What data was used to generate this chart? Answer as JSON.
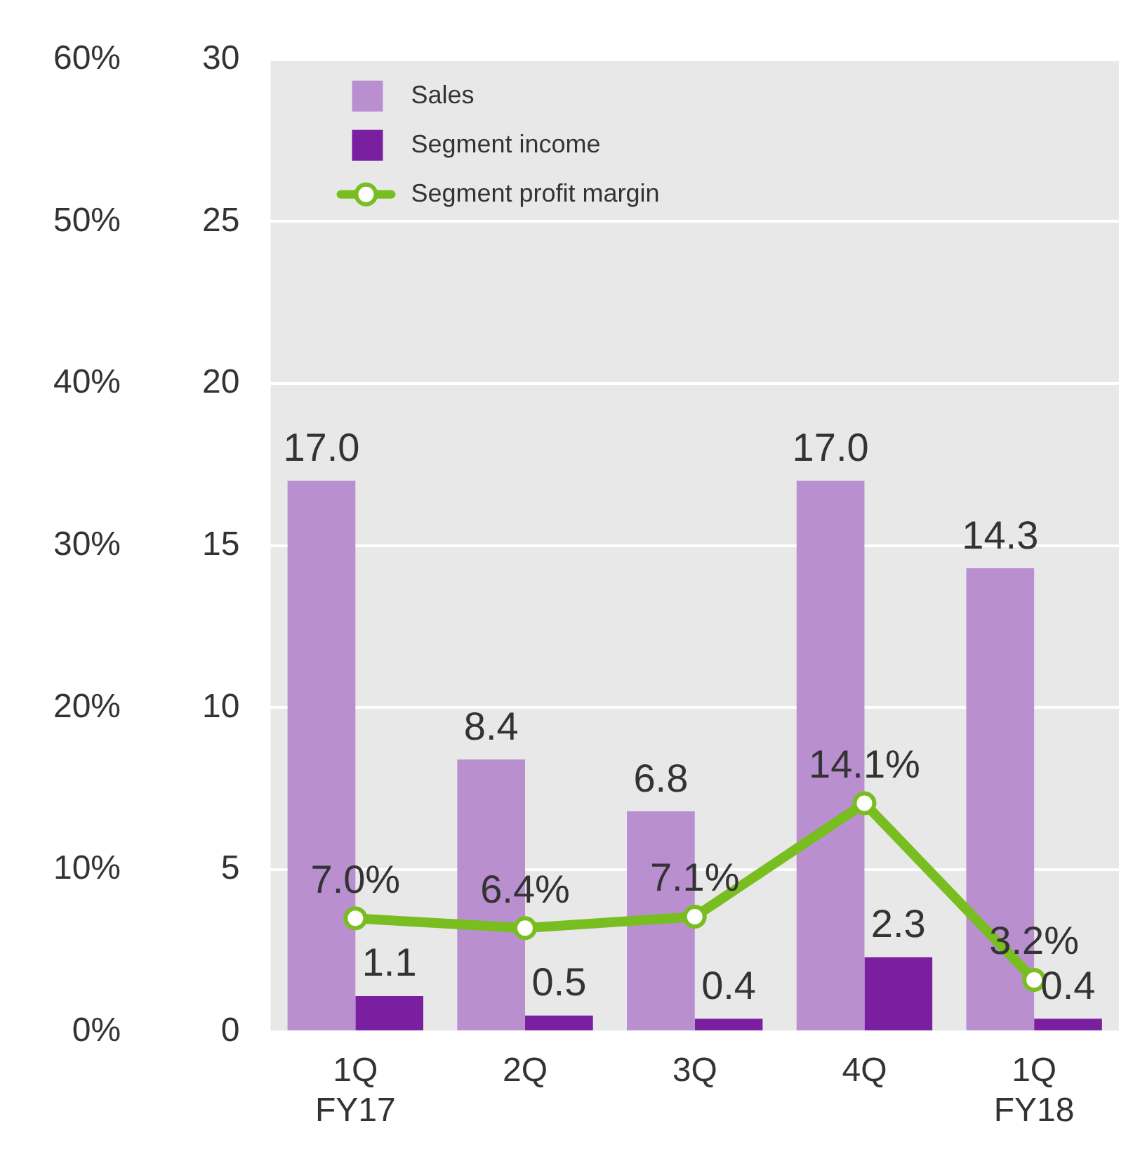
{
  "chart_data": {
    "type": "bar",
    "categories": [
      "1Q\nFY17",
      "2Q",
      "3Q",
      "4Q",
      "1Q\nFY18"
    ],
    "series": [
      {
        "name": "Sales",
        "color": "#b98fd0",
        "values": [
          17.0,
          8.4,
          6.8,
          17.0,
          14.3
        ],
        "value_labels": [
          "17.0",
          "8.4",
          "6.8",
          "17.0",
          "14.3"
        ]
      },
      {
        "name": "Segment income",
        "color": "#7a1fa0",
        "values": [
          1.1,
          0.5,
          0.4,
          2.3,
          0.4
        ],
        "value_labels": [
          "1.1",
          "0.5",
          "0.4",
          "2.3",
          "0.4"
        ]
      },
      {
        "name": "Segment profit margin",
        "type": "line",
        "axis": "y2",
        "color": "#78be20",
        "values": [
          7.0,
          6.4,
          7.1,
          14.1,
          3.2
        ],
        "value_labels": [
          "7.0%",
          "6.4%",
          "7.1%",
          "14.1%",
          "3.2%"
        ]
      }
    ],
    "ylim": [
      0,
      30
    ],
    "yticks": [
      0,
      5,
      10,
      15,
      20,
      25,
      30
    ],
    "y2lim": [
      0,
      60
    ],
    "y2ticks": [
      {
        "value": 0,
        "label": "0%"
      },
      {
        "value": 10,
        "label": "10%"
      },
      {
        "value": 20,
        "label": "20%"
      },
      {
        "value": 30,
        "label": "30%"
      },
      {
        "value": 40,
        "label": "40%"
      },
      {
        "value": 50,
        "label": "50%"
      },
      {
        "value": 60,
        "label": "60%"
      }
    ],
    "grid": "y",
    "legend": "top left",
    "marker": "circle",
    "line_style": "solid"
  }
}
